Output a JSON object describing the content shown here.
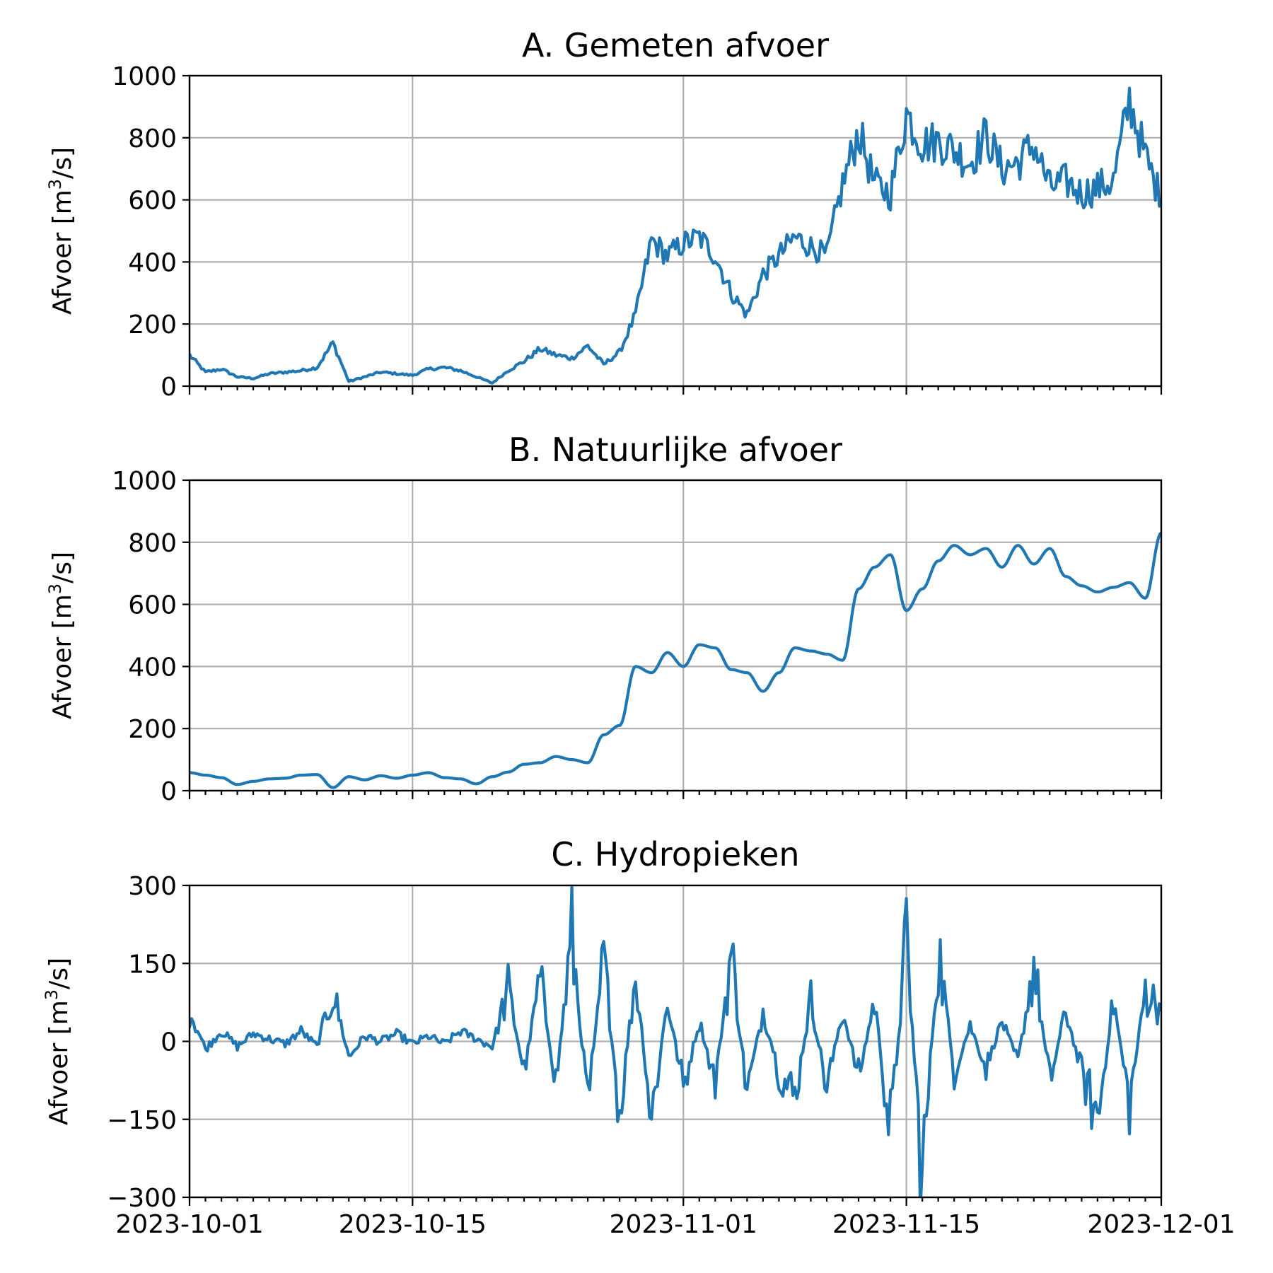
{
  "chart_data": [
    {
      "type": "line",
      "title": "A. Gemeten afvoer",
      "ylabel": "Afvoer [m3/s]",
      "ylabel_parts": [
        "Afvoer [m",
        "3",
        "/s]"
      ],
      "ylim": [
        0,
        1000
      ],
      "yticks": [
        0,
        200,
        400,
        600,
        800,
        1000
      ],
      "ytick_labels": [
        "0",
        "200",
        "400",
        "600",
        "800",
        "1000"
      ],
      "xlim": [
        "2023-10-01",
        "2023-12-01"
      ],
      "xticks": [
        "2023-10-01",
        "2023-10-15",
        "2023-11-01",
        "2023-11-15",
        "2023-12-01"
      ],
      "xtick_labels_shown": false,
      "grid": true,
      "color": "#1f77b4",
      "x": [
        "2023-10-01",
        "2023-10-02",
        "2023-10-03",
        "2023-10-04",
        "2023-10-05",
        "2023-10-06",
        "2023-10-07",
        "2023-10-08",
        "2023-10-09",
        "2023-10-10",
        "2023-10-11",
        "2023-10-12",
        "2023-10-13",
        "2023-10-14",
        "2023-10-15",
        "2023-10-16",
        "2023-10-17",
        "2023-10-18",
        "2023-10-19",
        "2023-10-20",
        "2023-10-21",
        "2023-10-22",
        "2023-10-23",
        "2023-10-24",
        "2023-10-25",
        "2023-10-26",
        "2023-10-27",
        "2023-10-28",
        "2023-10-29",
        "2023-10-30",
        "2023-10-31",
        "2023-11-01",
        "2023-11-02",
        "2023-11-03",
        "2023-11-04",
        "2023-11-05",
        "2023-11-06",
        "2023-11-07",
        "2023-11-08",
        "2023-11-09",
        "2023-11-10",
        "2023-11-11",
        "2023-11-12",
        "2023-11-13",
        "2023-11-14",
        "2023-11-15",
        "2023-11-16",
        "2023-11-17",
        "2023-11-18",
        "2023-11-19",
        "2023-11-20",
        "2023-11-21",
        "2023-11-22",
        "2023-11-23",
        "2023-11-24",
        "2023-11-25",
        "2023-11-26",
        "2023-11-27",
        "2023-11-28",
        "2023-11-29",
        "2023-11-30",
        "2023-12-01"
      ],
      "values": [
        100,
        45,
        55,
        30,
        25,
        40,
        45,
        50,
        60,
        140,
        15,
        30,
        45,
        40,
        35,
        55,
        60,
        50,
        30,
        10,
        50,
        80,
        120,
        100,
        90,
        130,
        70,
        110,
        230,
        470,
        420,
        460,
        480,
        420,
        300,
        230,
        360,
        420,
        480,
        450,
        420,
        650,
        820,
        650,
        620,
        880,
        780,
        790,
        760,
        720,
        810,
        700,
        720,
        780,
        640,
        660,
        620,
        640,
        660,
        920,
        740,
        600
      ]
    },
    {
      "type": "line",
      "title": "B. Natuurlijke afvoer",
      "ylabel": "Afvoer [m3/s]",
      "ylabel_parts": [
        "Afvoer [m",
        "3",
        "/s]"
      ],
      "ylim": [
        0,
        1000
      ],
      "yticks": [
        0,
        200,
        400,
        600,
        800,
        1000
      ],
      "ytick_labels": [
        "0",
        "200",
        "400",
        "600",
        "800",
        "1000"
      ],
      "xlim": [
        "2023-10-01",
        "2023-12-01"
      ],
      "xticks": [
        "2023-10-01",
        "2023-10-15",
        "2023-11-01",
        "2023-11-15",
        "2023-12-01"
      ],
      "xtick_labels_shown": false,
      "grid": true,
      "color": "#1f77b4",
      "x": [
        "2023-10-01",
        "2023-10-02",
        "2023-10-03",
        "2023-10-04",
        "2023-10-05",
        "2023-10-06",
        "2023-10-07",
        "2023-10-08",
        "2023-10-09",
        "2023-10-10",
        "2023-10-11",
        "2023-10-12",
        "2023-10-13",
        "2023-10-14",
        "2023-10-15",
        "2023-10-16",
        "2023-10-17",
        "2023-10-18",
        "2023-10-19",
        "2023-10-20",
        "2023-10-21",
        "2023-10-22",
        "2023-10-23",
        "2023-10-24",
        "2023-10-25",
        "2023-10-26",
        "2023-10-27",
        "2023-10-28",
        "2023-10-29",
        "2023-10-30",
        "2023-10-31",
        "2023-11-01",
        "2023-11-02",
        "2023-11-03",
        "2023-11-04",
        "2023-11-05",
        "2023-11-06",
        "2023-11-07",
        "2023-11-08",
        "2023-11-09",
        "2023-11-10",
        "2023-11-11",
        "2023-11-12",
        "2023-11-13",
        "2023-11-14",
        "2023-11-15",
        "2023-11-16",
        "2023-11-17",
        "2023-11-18",
        "2023-11-19",
        "2023-11-20",
        "2023-11-21",
        "2023-11-22",
        "2023-11-23",
        "2023-11-24",
        "2023-11-25",
        "2023-11-26",
        "2023-11-27",
        "2023-11-28",
        "2023-11-29",
        "2023-11-30",
        "2023-12-01"
      ],
      "values": [
        58,
        50,
        42,
        20,
        30,
        38,
        40,
        50,
        52,
        10,
        45,
        35,
        48,
        40,
        50,
        58,
        42,
        38,
        22,
        45,
        60,
        85,
        90,
        110,
        100,
        90,
        180,
        210,
        400,
        380,
        445,
        400,
        470,
        460,
        390,
        380,
        320,
        380,
        460,
        450,
        440,
        420,
        650,
        720,
        760,
        580,
        650,
        740,
        790,
        760,
        780,
        720,
        790,
        730,
        780,
        690,
        660,
        640,
        655,
        670,
        620,
        830
      ]
    },
    {
      "type": "line",
      "title": "C. Hydropieken",
      "ylabel": "Afvoer [m3/s]",
      "ylabel_parts": [
        "Afvoer [m",
        "3",
        "/s]"
      ],
      "ylim": [
        -300,
        300
      ],
      "yticks": [
        -300,
        -150,
        0,
        150,
        300
      ],
      "ytick_labels": [
        "−300",
        "−150",
        "0",
        "150",
        "300"
      ],
      "xlim": [
        "2023-10-01",
        "2023-12-01"
      ],
      "xticks": [
        "2023-10-01",
        "2023-10-15",
        "2023-11-01",
        "2023-11-15",
        "2023-12-01"
      ],
      "xtick_labels": [
        "2023-10-01",
        "2023-10-15",
        "2023-11-01",
        "2023-11-15",
        "2023-12-01"
      ],
      "xtick_labels_shown": true,
      "grid": true,
      "color": "#1f77b4",
      "x": [
        "2023-10-01",
        "2023-10-02",
        "2023-10-03",
        "2023-10-04",
        "2023-10-05",
        "2023-10-06",
        "2023-10-07",
        "2023-10-08",
        "2023-10-09",
        "2023-10-10",
        "2023-10-11",
        "2023-10-12",
        "2023-10-13",
        "2023-10-14",
        "2023-10-15",
        "2023-10-16",
        "2023-10-17",
        "2023-10-18",
        "2023-10-19",
        "2023-10-20",
        "2023-10-21",
        "2023-10-22",
        "2023-10-23",
        "2023-10-24",
        "2023-10-25",
        "2023-10-26",
        "2023-10-27",
        "2023-10-28",
        "2023-10-29",
        "2023-10-30",
        "2023-10-31",
        "2023-11-01",
        "2023-11-02",
        "2023-11-03",
        "2023-11-04",
        "2023-11-05",
        "2023-11-06",
        "2023-11-07",
        "2023-11-08",
        "2023-11-09",
        "2023-11-10",
        "2023-11-11",
        "2023-11-12",
        "2023-11-13",
        "2023-11-14",
        "2023-11-15",
        "2023-11-16",
        "2023-11-17",
        "2023-11-18",
        "2023-11-19",
        "2023-11-20",
        "2023-11-21",
        "2023-11-22",
        "2023-11-23",
        "2023-11-24",
        "2023-11-25",
        "2023-11-26",
        "2023-11-27",
        "2023-11-28",
        "2023-11-29",
        "2023-11-30",
        "2023-12-01"
      ],
      "values": [
        60,
        -15,
        20,
        -10,
        15,
        5,
        -5,
        20,
        -10,
        95,
        -30,
        10,
        0,
        15,
        -5,
        10,
        -5,
        20,
        5,
        -10,
        100,
        -60,
        120,
        -80,
        200,
        -120,
        160,
        -140,
        130,
        -150,
        80,
        -90,
        40,
        -80,
        170,
        -100,
        60,
        -60,
        -110,
        80,
        -90,
        60,
        -70,
        80,
        -180,
        200,
        -270,
        180,
        -60,
        30,
        -50,
        40,
        -40,
        150,
        -80,
        60,
        -60,
        -150,
        80,
        -120,
        100,
        60
      ]
    }
  ]
}
